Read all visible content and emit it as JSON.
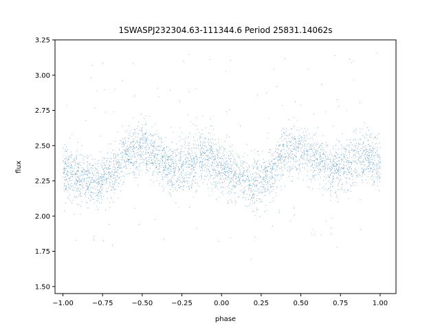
{
  "chart_data": {
    "type": "scatter",
    "title": "1SWASPJ232304.63-111344.6 Period 25831.14062s",
    "xlabel": "phase",
    "ylabel": "flux",
    "xlim": [
      -1.05,
      1.1
    ],
    "ylim": [
      1.45,
      3.25
    ],
    "xticks": [
      "−1.00",
      "−0.75",
      "−0.50",
      "−0.25",
      "0.00",
      "0.25",
      "0.50",
      "0.75",
      "1.00"
    ],
    "yticks": [
      "1.50",
      "1.75",
      "2.00",
      "2.25",
      "2.50",
      "2.75",
      "3.00",
      "3.25"
    ],
    "grid": false,
    "point_color": "#1f77b4",
    "trend": {
      "description_points_phase": [
        -1.0,
        -0.9,
        -0.8,
        -0.7,
        -0.6,
        -0.5,
        -0.4,
        -0.3,
        -0.2,
        -0.1,
        0.0,
        0.1,
        0.2,
        0.3,
        0.4,
        0.5,
        0.6,
        0.7,
        0.8,
        0.9,
        1.0
      ],
      "description_points_flux": [
        2.33,
        2.28,
        2.23,
        2.3,
        2.45,
        2.48,
        2.4,
        2.33,
        2.37,
        2.42,
        2.35,
        2.27,
        2.22,
        2.3,
        2.45,
        2.48,
        2.4,
        2.33,
        2.37,
        2.42,
        2.37
      ]
    },
    "scatter_spread": 0.09,
    "n_points": 9000
  }
}
